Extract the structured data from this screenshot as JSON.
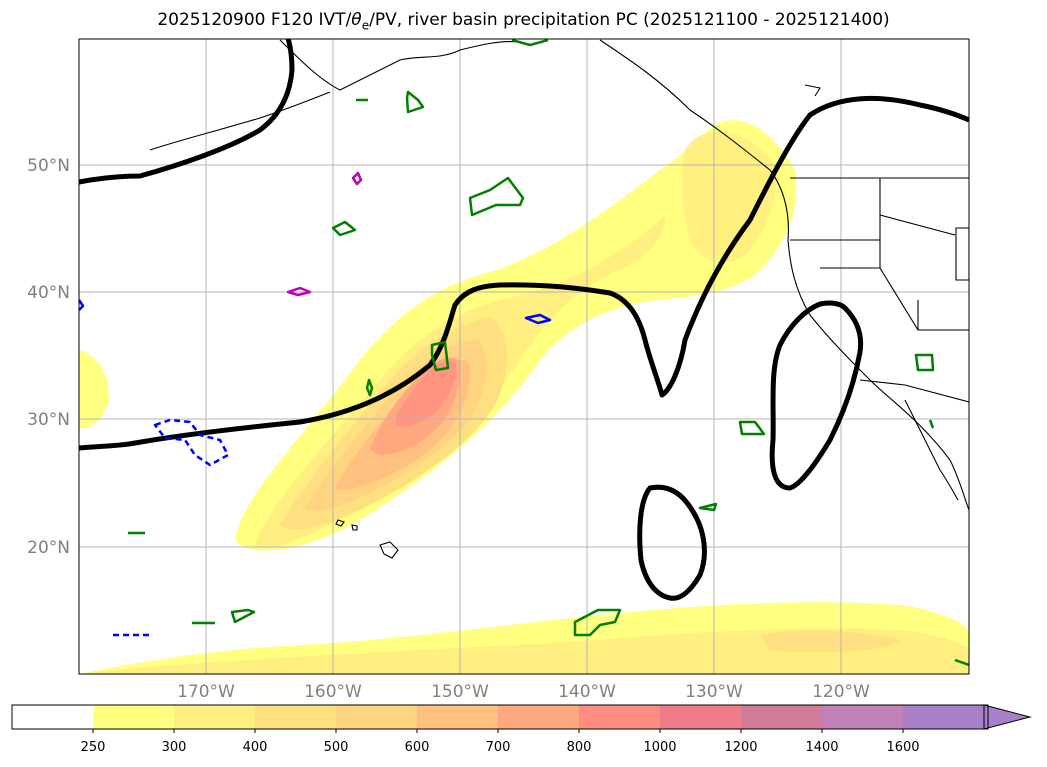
{
  "title": {
    "prefix": "2025120900 F120 IVT/",
    "theta": "θ",
    "theta_sub": "e",
    "suffix": "/PV, river basin precipitation PC (2025121100 - 2025121400)"
  },
  "chart_data": {
    "type": "map",
    "region": "North Pacific / western North America",
    "lon_range": [
      -180,
      -110
    ],
    "lat_range": [
      10,
      60
    ],
    "lat_ticks": [
      {
        "value": 50,
        "label": "50°N"
      },
      {
        "value": 40,
        "label": "40°N"
      },
      {
        "value": 30,
        "label": "30°N"
      },
      {
        "value": 20,
        "label": "20°N"
      }
    ],
    "lon_ticks": [
      {
        "value": -170,
        "label": "170°W"
      },
      {
        "value": -160,
        "label": "160°W"
      },
      {
        "value": -150,
        "label": "150°W"
      },
      {
        "value": -140,
        "label": "140°W"
      },
      {
        "value": -130,
        "label": "130°W"
      },
      {
        "value": -120,
        "label": "120°W"
      }
    ],
    "colorbar": {
      "levels": [
        "250",
        "300",
        "400",
        "500",
        "600",
        "700",
        "800",
        "1000",
        "1200",
        "1400",
        "1600"
      ],
      "colors": [
        "#ffffff",
        "#ffff80",
        "#ffee80",
        "#ffe080",
        "#ffd480",
        "#ffc080",
        "#ffa880",
        "#ff8c80",
        "#ee7c88",
        "#d07c98",
        "#c080b8",
        "#a880c8"
      ],
      "extend": "max"
    },
    "layers": [
      {
        "name": "IVT",
        "style": "filled contours"
      },
      {
        "name": "PV contour",
        "style": "thick black line"
      },
      {
        "name": "river basin precipitation PC",
        "style": "green, blue dashed, magenta contours"
      }
    ]
  }
}
